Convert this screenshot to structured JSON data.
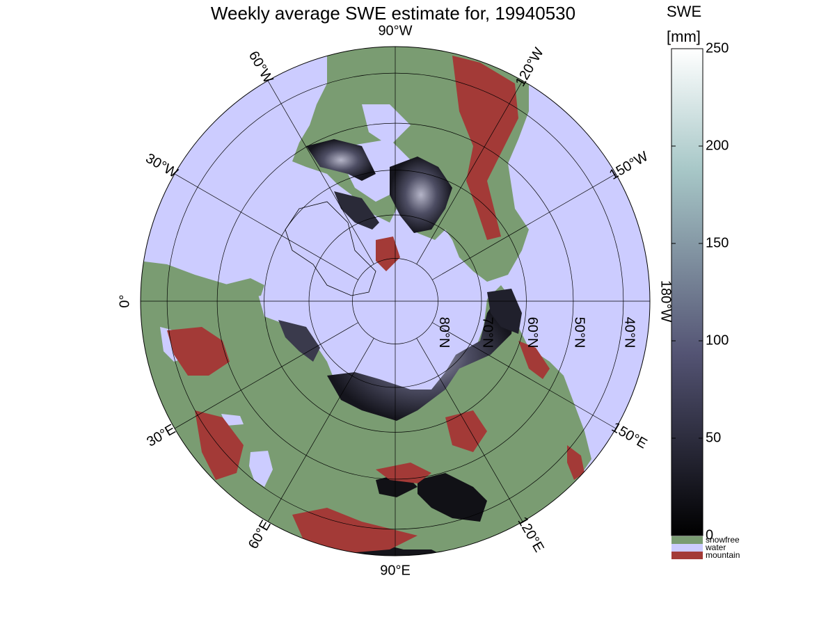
{
  "title_prefix": "Weekly average SWE estimate for, ",
  "date": "19940530",
  "colorbar": {
    "title_line1": "SWE",
    "title_line2": "[mm]",
    "ticks": [
      "0",
      "50",
      "100",
      "150",
      "200",
      "250"
    ],
    "values": [
      0,
      50,
      100,
      150,
      200,
      250
    ],
    "range": [
      0,
      250
    ],
    "colormap": "bone",
    "categories": [
      {
        "label": "snowfree",
        "color": "#7a9c72"
      },
      {
        "label": "water",
        "color": "#ccccff"
      },
      {
        "label": "mountain",
        "color": "#a33a37"
      }
    ]
  },
  "map": {
    "projection": "north-polar-stereographic",
    "ocean_color": "#ccccff",
    "land_color": "#7a9c72",
    "mountain_color": "#a33a37",
    "lon_labels": [
      {
        "text": "90°W",
        "lon": -90
      },
      {
        "text": "120°W",
        "lon": -120
      },
      {
        "text": "150°W",
        "lon": -150
      },
      {
        "text": "180°W",
        "lon": 180
      },
      {
        "text": "150°E",
        "lon": 150
      },
      {
        "text": "120°E",
        "lon": 120
      },
      {
        "text": "90°E",
        "lon": 90
      },
      {
        "text": "60°E",
        "lon": 60
      },
      {
        "text": "30°E",
        "lon": 30
      },
      {
        "text": "0°",
        "lon": 0
      },
      {
        "text": "30°W",
        "lon": -30
      },
      {
        "text": "60°W",
        "lon": -60
      }
    ],
    "lat_labels": [
      {
        "text": "80°N",
        "lat": 80
      },
      {
        "text": "70°N",
        "lat": 70
      },
      {
        "text": "60°N",
        "lat": 60
      },
      {
        "text": "50°N",
        "lat": 50
      },
      {
        "text": "40°N",
        "lat": 40
      }
    ],
    "lat_circles": [
      80,
      70,
      60,
      50,
      40
    ],
    "lat_min": 35
  }
}
